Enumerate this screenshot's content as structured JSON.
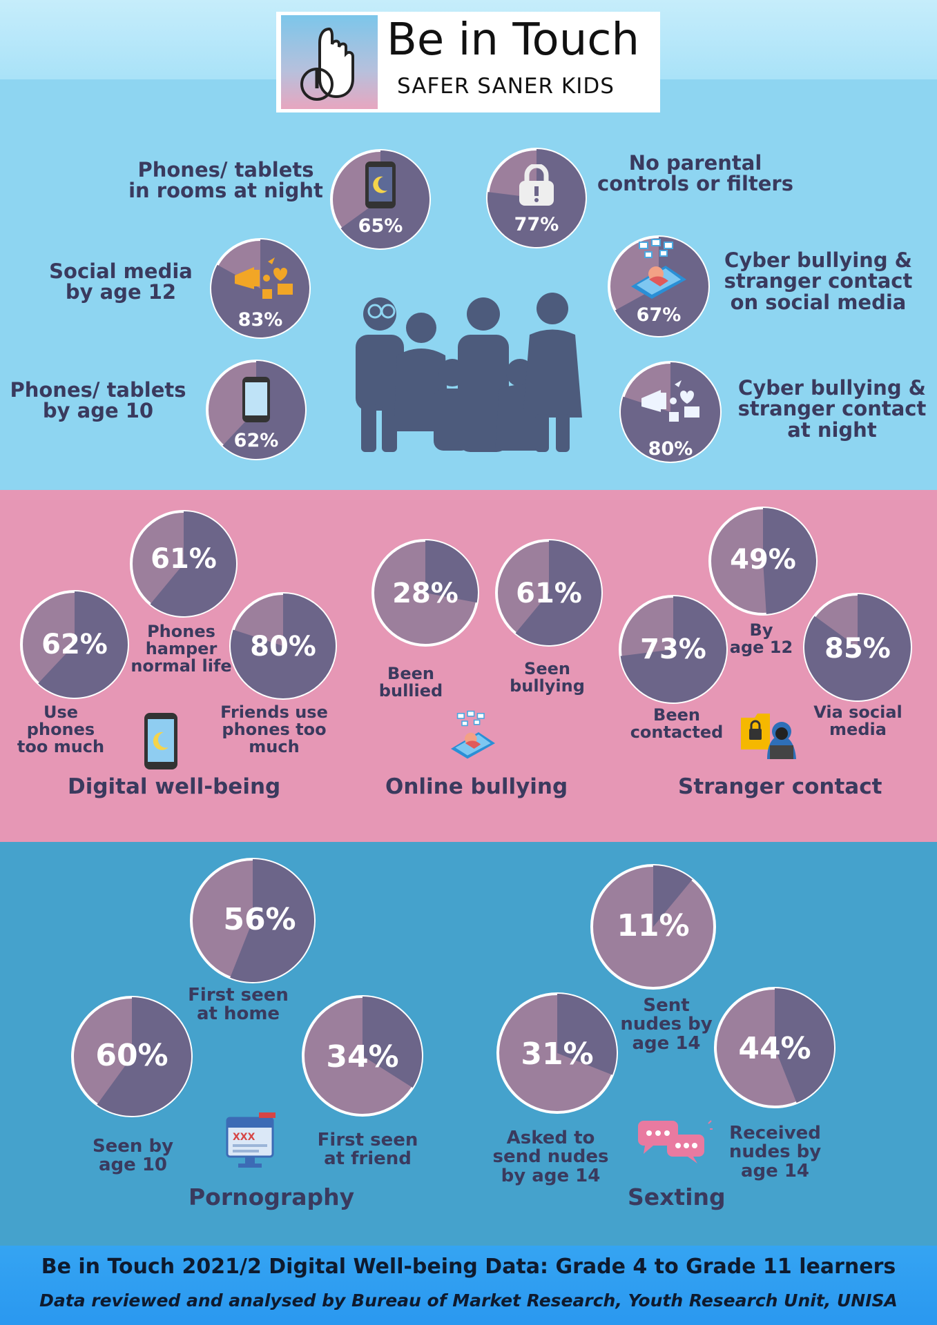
{
  "header": {
    "title": "Be in Touch",
    "subtitle": "SAFER SANER KIDS"
  },
  "colors": {
    "dark": "#6c6589",
    "light": "#9c7f9c",
    "ring": "#ffffff"
  },
  "sections": [
    {
      "name": "Digital well-being"
    },
    {
      "name": "Online bullying"
    },
    {
      "name": "Stranger contact"
    },
    {
      "name": "Pornography"
    },
    {
      "name": "Sexting"
    }
  ],
  "chart_data": [
    {
      "type": "pie",
      "label": "Phones/ tablets\nin rooms at night",
      "value_text": "65%",
      "value": 65,
      "icon": "phone-moon-icon"
    },
    {
      "type": "pie",
      "label": "No parental\ncontrols or filters",
      "value_text": "77%",
      "value": 77,
      "icon": "lock-icon"
    },
    {
      "type": "pie",
      "label": "Social media\nby age 12",
      "value_text": "83%",
      "value": 83,
      "icon": "social-media-icon"
    },
    {
      "type": "pie",
      "label": "Cyber bullying &\nstranger contact\non social media",
      "value_text": "67%",
      "value": 67,
      "icon": "cyber-bullying-icon"
    },
    {
      "type": "pie",
      "label": "Phones/ tablets\nby age 10",
      "value_text": "62%",
      "value": 62,
      "icon": "phone-icon"
    },
    {
      "type": "pie",
      "label": "Cyber bullying &\nstranger contact\nat night",
      "value_text": "80%",
      "value": 80,
      "icon": "social-media-icon"
    },
    {
      "type": "pie",
      "label": "Use\nphones\ntoo much",
      "value_text": "62%",
      "value": 62
    },
    {
      "type": "pie",
      "label": "Phones\nhamper\nnormal life",
      "value_text": "61%",
      "value": 61
    },
    {
      "type": "pie",
      "label": "Friends use\nphones too\nmuch",
      "value_text": "80%",
      "value": 80
    },
    {
      "type": "pie",
      "label": "Been\nbullied",
      "value_text": "28%",
      "value": 28
    },
    {
      "type": "pie",
      "label": "Seen\nbullying",
      "value_text": "61%",
      "value": 61
    },
    {
      "type": "pie",
      "label": "Been\ncontacted",
      "value_text": "73%",
      "value": 73
    },
    {
      "type": "pie",
      "label": "By\nage 12",
      "value_text": "49%",
      "value": 49
    },
    {
      "type": "pie",
      "label": "Via social\nmedia",
      "value_text": "85%",
      "value": 85
    },
    {
      "type": "pie",
      "label": "First seen\nat home",
      "value_text": "56%",
      "value": 56
    },
    {
      "type": "pie",
      "label": "Seen by\nage 10",
      "value_text": "60%",
      "value": 60
    },
    {
      "type": "pie",
      "label": "First seen\nat friend",
      "value_text": "34%",
      "value": 34
    },
    {
      "type": "pie",
      "label": "Sent\nnudes by\nage 14",
      "value_text": "11%",
      "value": 11
    },
    {
      "type": "pie",
      "label": "Asked to\nsend nudes\nby age 14",
      "value_text": "31%",
      "value": 31
    },
    {
      "type": "pie",
      "label": "Received\nnudes by\nage 14",
      "value_text": "44%",
      "value": 44
    }
  ],
  "footer": {
    "line1": "Be in Touch 2021/2 Digital Well-being Data: Grade 4 to Grade 11 learners",
    "line2": "Data reviewed and analysed by Bureau of Market Research, Youth Research Unit, UNISA"
  }
}
